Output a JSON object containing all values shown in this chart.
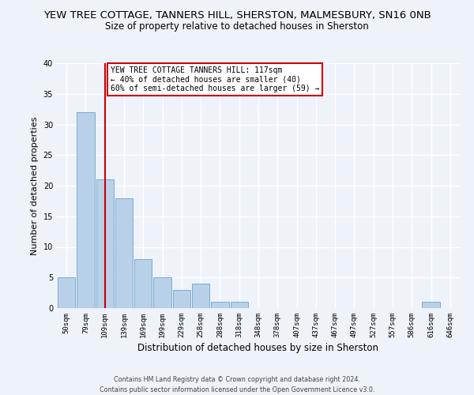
{
  "title": "YEW TREE COTTAGE, TANNERS HILL, SHERSTON, MALMESBURY, SN16 0NB",
  "subtitle": "Size of property relative to detached houses in Sherston",
  "xlabel": "Distribution of detached houses by size in Sherston",
  "ylabel": "Number of detached properties",
  "bar_color": "#b8d0e8",
  "bar_edge_color": "#7aadd4",
  "background_color": "#eef2f9",
  "bins": [
    "50sqm",
    "79sqm",
    "109sqm",
    "139sqm",
    "169sqm",
    "199sqm",
    "229sqm",
    "258sqm",
    "288sqm",
    "318sqm",
    "348sqm",
    "378sqm",
    "407sqm",
    "437sqm",
    "467sqm",
    "497sqm",
    "527sqm",
    "557sqm",
    "586sqm",
    "616sqm",
    "646sqm"
  ],
  "values": [
    5,
    32,
    21,
    18,
    8,
    5,
    3,
    4,
    1,
    1,
    0,
    0,
    0,
    0,
    0,
    0,
    0,
    0,
    0,
    1,
    0
  ],
  "ylim": [
    0,
    40
  ],
  "yticks": [
    0,
    5,
    10,
    15,
    20,
    25,
    30,
    35,
    40
  ],
  "property_line_x": 2,
  "annotation_title": "YEW TREE COTTAGE TANNERS HILL: 117sqm",
  "annotation_line1": "← 40% of detached houses are smaller (40)",
  "annotation_line2": "60% of semi-detached houses are larger (59) →",
  "annotation_box_color": "#ffffff",
  "annotation_border_color": "#cc0000",
  "vline_color": "#cc0000",
  "footnote1": "Contains HM Land Registry data © Crown copyright and database right 2024.",
  "footnote2": "Contains public sector information licensed under the Open Government Licence v3.0.",
  "grid_color": "#ffffff",
  "title_fontsize": 9.5,
  "subtitle_fontsize": 8.5,
  "axis_label_fontsize": 8,
  "tick_fontsize": 6.5,
  "annotation_fontsize": 7,
  "footnote_fontsize": 5.8
}
